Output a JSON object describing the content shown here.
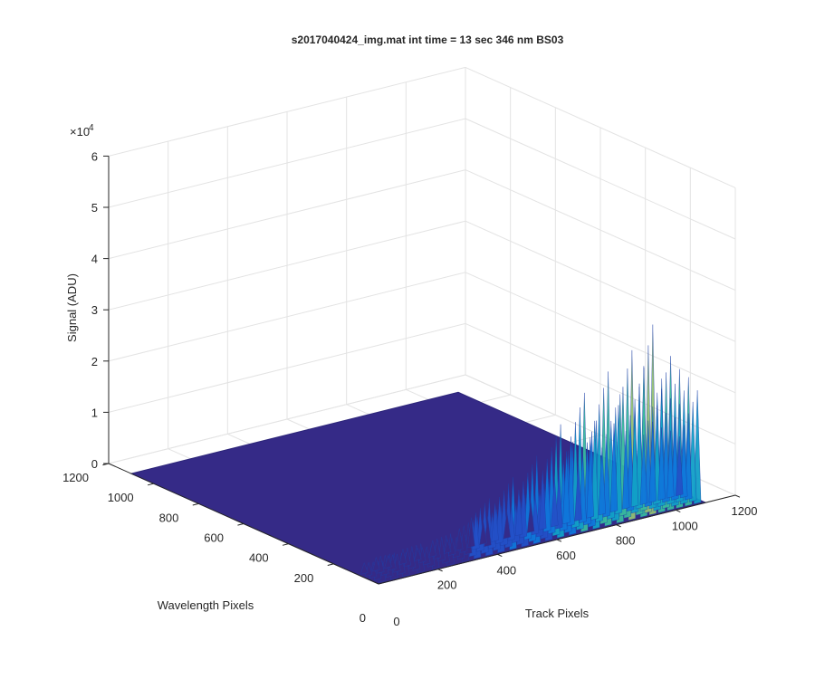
{
  "chart_data": {
    "type": "surface",
    "title": "s2017040424_img.mat int time = 13 sec  346 nm BS03",
    "xlabel": "Track Pixels",
    "ylabel": "Wavelength Pixels",
    "zlabel": "Signal (ADU)",
    "xlim": [
      0,
      1200
    ],
    "ylim": [
      0,
      1200
    ],
    "zlim": [
      0,
      60000
    ],
    "z_exponent_label": "×10",
    "z_exponent_power": "4",
    "x_ticks": [
      {
        "v": 200,
        "label": "200"
      },
      {
        "v": 400,
        "label": "400"
      },
      {
        "v": 600,
        "label": "600"
      },
      {
        "v": 800,
        "label": "800"
      },
      {
        "v": 1000,
        "label": "1000"
      },
      {
        "v": 1200,
        "label": "1200"
      }
    ],
    "y_ticks": [
      {
        "v": 200,
        "label": "200"
      },
      {
        "v": 400,
        "label": "400"
      },
      {
        "v": 600,
        "label": "600"
      },
      {
        "v": 800,
        "label": "800"
      },
      {
        "v": 1000,
        "label": "1000"
      },
      {
        "v": 1200,
        "label": "1200"
      }
    ],
    "origin_labels": {
      "x": "0",
      "y": "0"
    },
    "z_ticks": [
      {
        "v": 0,
        "label": "0"
      },
      {
        "v": 10000,
        "label": "1"
      },
      {
        "v": 20000,
        "label": "2"
      },
      {
        "v": 30000,
        "label": "3"
      },
      {
        "v": 40000,
        "label": "4"
      },
      {
        "v": 50000,
        "label": "5"
      },
      {
        "v": 60000,
        "label": "6"
      }
    ],
    "surface_extent": {
      "x": [
        0,
        1100
      ],
      "y": [
        0,
        1100
      ]
    },
    "baseline_signal": 0,
    "peaks_along_near_edge": [
      {
        "x": 20,
        "z": 4000
      },
      {
        "x": 60,
        "z": 5000
      },
      {
        "x": 100,
        "z": 4500
      },
      {
        "x": 150,
        "z": 5500
      },
      {
        "x": 200,
        "z": 4500
      },
      {
        "x": 250,
        "z": 6000
      },
      {
        "x": 300,
        "z": 5000
      },
      {
        "x": 340,
        "z": 8000
      },
      {
        "x": 380,
        "z": 11000
      },
      {
        "x": 420,
        "z": 9000
      },
      {
        "x": 460,
        "z": 14000
      },
      {
        "x": 500,
        "z": 10000
      },
      {
        "x": 540,
        "z": 17000
      },
      {
        "x": 580,
        "z": 12000
      },
      {
        "x": 620,
        "z": 22000
      },
      {
        "x": 660,
        "z": 18000
      },
      {
        "x": 700,
        "z": 27000
      },
      {
        "x": 740,
        "z": 21000
      },
      {
        "x": 780,
        "z": 30000
      },
      {
        "x": 820,
        "z": 25000
      },
      {
        "x": 860,
        "z": 33000
      },
      {
        "x": 900,
        "z": 29000
      },
      {
        "x": 930,
        "z": 37000
      },
      {
        "x": 960,
        "z": 26000
      },
      {
        "x": 990,
        "z": 30000
      },
      {
        "x": 1020,
        "z": 27000
      },
      {
        "x": 1050,
        "z": 25000
      },
      {
        "x": 1080,
        "z": 22000
      }
    ],
    "grid": true,
    "colormap": "parula"
  }
}
